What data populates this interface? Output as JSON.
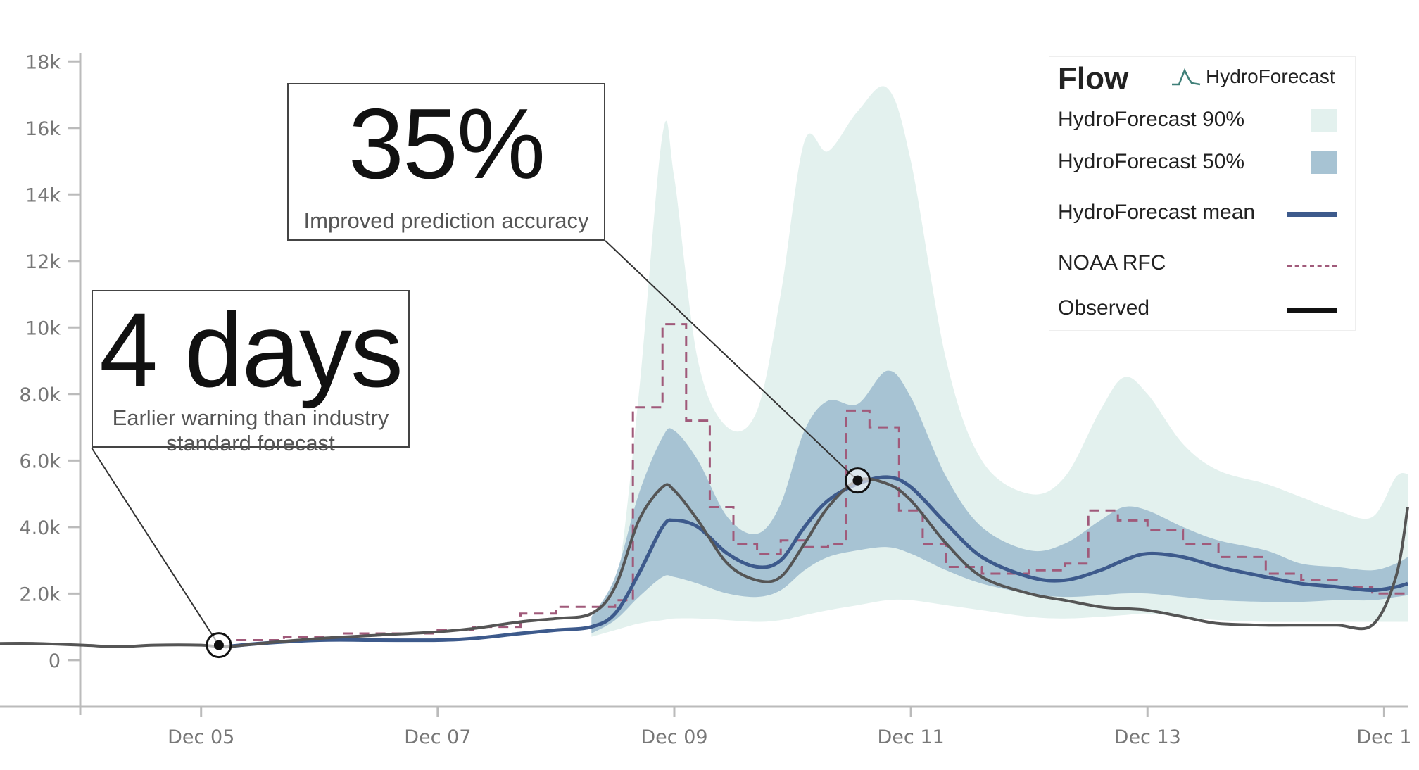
{
  "chart_data": {
    "type": "area",
    "x_axis": {
      "tick_labels": [
        "Dec 05",
        "Dec 07",
        "Dec 09",
        "Dec 11",
        "Dec 13",
        "Dec 1"
      ],
      "tick_values": [
        5,
        7,
        9,
        11,
        13,
        15
      ]
    },
    "y_axis": {
      "tick_labels": [
        "0",
        "2.0k",
        "4.0k",
        "6.0k",
        "8.0k",
        "10k",
        "12k",
        "14k",
        "16k",
        "18k"
      ],
      "tick_values": [
        0,
        2000,
        4000,
        6000,
        8000,
        10000,
        12000,
        14000,
        16000,
        18000
      ],
      "ylim": [
        -1400,
        19000
      ]
    },
    "xlim": [
      3.3,
      15.2
    ],
    "legend": {
      "title": "Flow",
      "brand": "HydroForecast",
      "placement": "top-right"
    },
    "colors": {
      "band90": "#e3f1ee",
      "band50": "#a7c3d3",
      "mean": "#3d5a8c",
      "noaa": "#a05a7a",
      "observed": "#555555"
    },
    "x": [
      3.3,
      3.6,
      4.0,
      4.3,
      4.6,
      5.0,
      5.2,
      5.5,
      6.0,
      6.5,
      7.0,
      7.3,
      7.7,
      8.0,
      8.3,
      8.5,
      8.7,
      8.9,
      9.0,
      9.2,
      9.45,
      9.7,
      9.9,
      10.1,
      10.3,
      10.55,
      10.8,
      11.0,
      11.3,
      11.6,
      12.0,
      12.3,
      12.6,
      12.8,
      13.0,
      13.3,
      13.6,
      14.0,
      14.3,
      14.6,
      14.9,
      15.1,
      15.2
    ],
    "series": [
      {
        "name": "HydroForecast 90%",
        "type": "band",
        "lower": [
          null,
          null,
          null,
          null,
          null,
          null,
          null,
          null,
          null,
          null,
          null,
          null,
          null,
          null,
          700,
          900,
          1100,
          1200,
          1250,
          1250,
          1200,
          1150,
          1200,
          1350,
          1500,
          1650,
          1800,
          1800,
          1650,
          1500,
          1300,
          1250,
          1300,
          1350,
          1400,
          1300,
          1200,
          1150,
          1150,
          1150,
          1150,
          1150,
          1150
        ],
        "upper": [
          null,
          null,
          null,
          null,
          null,
          null,
          null,
          null,
          null,
          null,
          null,
          null,
          null,
          null,
          1200,
          2000,
          8000,
          15800,
          14500,
          9000,
          7000,
          7500,
          11000,
          15600,
          15300,
          16500,
          17200,
          15000,
          9000,
          6000,
          5000,
          5500,
          7500,
          8500,
          8000,
          6500,
          5700,
          5300,
          4900,
          4500,
          4300,
          5500,
          5600
        ]
      },
      {
        "name": "HydroForecast 50%",
        "type": "band",
        "lower": [
          null,
          null,
          null,
          null,
          null,
          null,
          null,
          null,
          null,
          null,
          null,
          null,
          null,
          null,
          800,
          1200,
          1900,
          2500,
          2500,
          2300,
          2000,
          1900,
          2100,
          2700,
          3100,
          3300,
          3400,
          3200,
          2700,
          2300,
          2000,
          1900,
          1950,
          2000,
          2000,
          1900,
          1800,
          1750,
          1750,
          1800,
          1800,
          1900,
          1950
        ],
        "upper": [
          null,
          null,
          null,
          null,
          null,
          null,
          null,
          null,
          null,
          null,
          null,
          null,
          null,
          null,
          1300,
          2500,
          5000,
          6700,
          6900,
          6000,
          4300,
          3800,
          4700,
          6900,
          7800,
          7700,
          8700,
          7900,
          5500,
          4000,
          3300,
          3500,
          4200,
          4600,
          4500,
          4000,
          3600,
          3300,
          2900,
          2800,
          2700,
          2900,
          3100
        ]
      },
      {
        "name": "HydroForecast mean",
        "type": "line",
        "values": [
          null,
          null,
          null,
          null,
          null,
          null,
          400,
          500,
          600,
          600,
          600,
          650,
          800,
          900,
          1000,
          1400,
          2600,
          4000,
          4200,
          4000,
          3200,
          2800,
          3000,
          4000,
          4800,
          5300,
          5500,
          5200,
          4100,
          3100,
          2500,
          2400,
          2700,
          3000,
          3200,
          3100,
          2800,
          2500,
          2300,
          2200,
          2100,
          2200,
          2300
        ]
      },
      {
        "name": "NOAA RFC",
        "type": "step",
        "x": [
          5.3,
          5.7,
          6.2,
          7.0,
          7.3,
          7.7,
          8.0,
          8.3,
          8.5,
          8.65,
          8.9,
          9.1,
          9.3,
          9.5,
          9.7,
          9.9,
          10.1,
          10.3,
          10.45,
          10.65,
          10.9,
          11.1,
          11.3,
          11.6,
          12.0,
          12.3,
          12.5,
          12.75,
          13.0,
          13.3,
          13.6,
          14.0,
          14.3,
          14.6,
          14.9,
          15.2
        ],
        "values": [
          600,
          700,
          800,
          900,
          1000,
          1400,
          1600,
          1600,
          1800,
          7600,
          10100,
          7200,
          4600,
          3500,
          3200,
          3600,
          3400,
          3500,
          7500,
          7000,
          4500,
          3500,
          2800,
          2600,
          2700,
          2900,
          4500,
          4200,
          3900,
          3500,
          3100,
          2600,
          2400,
          2200,
          2000,
          2000
        ]
      },
      {
        "name": "Observed",
        "type": "line",
        "values": [
          500,
          500,
          450,
          400,
          450,
          450,
          400,
          500,
          650,
          750,
          850,
          950,
          1150,
          1250,
          1400,
          2200,
          4200,
          5200,
          5100,
          4200,
          2900,
          2400,
          2500,
          3500,
          4600,
          5400,
          5300,
          4800,
          3500,
          2500,
          2000,
          1800,
          1600,
          1550,
          1500,
          1300,
          1100,
          1050,
          1050,
          1050,
          1050,
          2500,
          4600
        ]
      }
    ],
    "markers": [
      {
        "x": 5.15,
        "y": 450
      },
      {
        "x": 10.55,
        "y": 5400
      }
    ]
  },
  "callouts": {
    "lead_time": {
      "big": "4 days",
      "small": "Earlier warning than industry standard forecast"
    },
    "accuracy": {
      "big": "35%",
      "small": "Improved prediction accuracy"
    }
  },
  "legend_items": {
    "band90": "HydroForecast 90%",
    "band50": "HydroForecast 50%",
    "mean": "HydroForecast mean",
    "noaa": "NOAA RFC",
    "observed": "Observed"
  }
}
